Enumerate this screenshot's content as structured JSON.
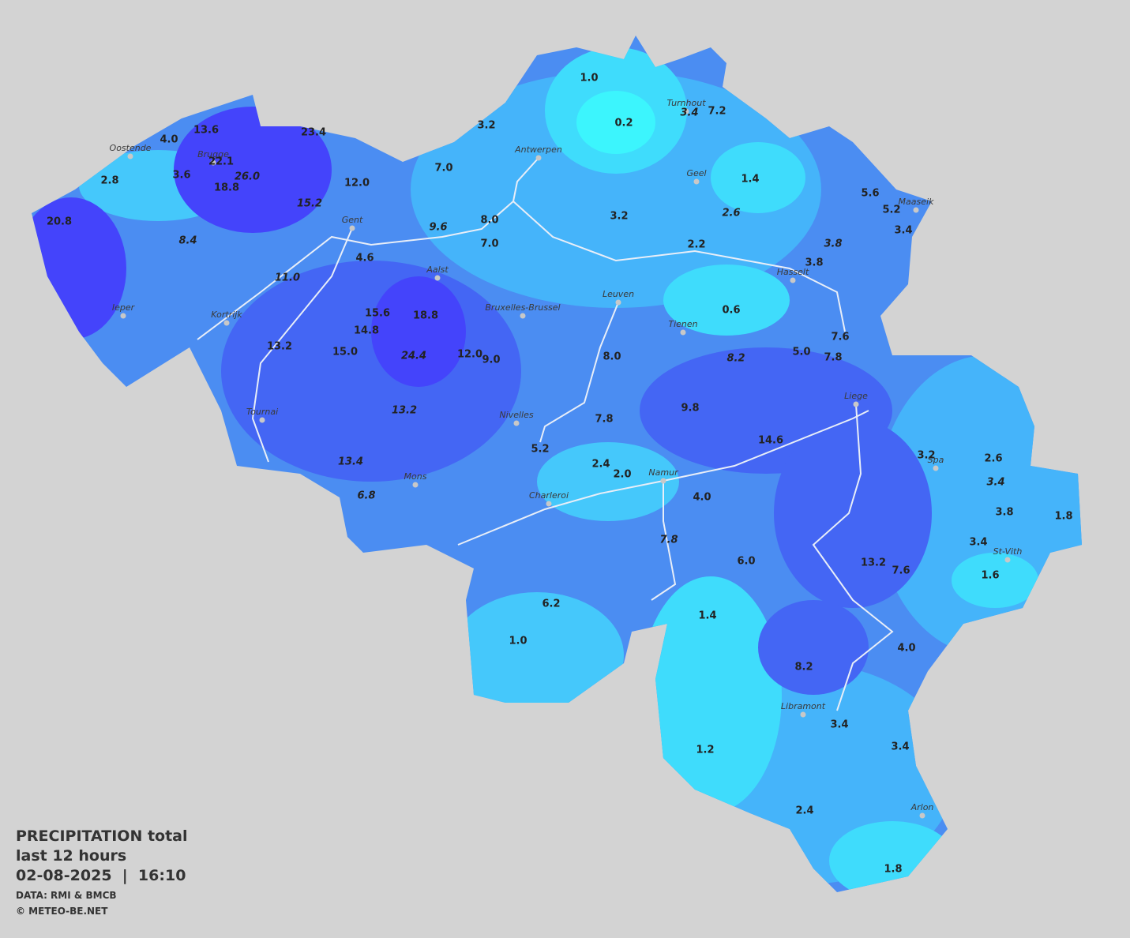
{
  "legend": {
    "title": "PRECIPITATION total",
    "subtitle": "last 12 hours",
    "datetime": "02-08-2025  |  16:10",
    "source": "DATA: RMI & BMCB",
    "copyright": "© METEO-BE.NET"
  },
  "cities": [
    "Oostende",
    "Brugge",
    "Gent",
    "Antwerpen",
    "Turnhout",
    "Geel",
    "Maaseik",
    "Hasselt",
    "Aalst",
    "Ieper",
    "Kortrijk",
    "Bruxelles-Brussel",
    "Leuven",
    "Tienen",
    "Liege",
    "Tournai",
    "Nivelles",
    "Spa",
    "Mons",
    "Namur",
    "Charleroi",
    "St-Vith",
    "Libramont",
    "Arlon"
  ],
  "stations": [
    {
      "value": "13.6",
      "italic": false
    },
    {
      "value": "4.0",
      "italic": false
    },
    {
      "value": "23.4",
      "italic": false
    },
    {
      "value": "22.1",
      "italic": false
    },
    {
      "value": "26.0",
      "italic": true
    },
    {
      "value": "3.6",
      "italic": false
    },
    {
      "value": "2.8",
      "italic": false
    },
    {
      "value": "18.8",
      "italic": false
    },
    {
      "value": "12.0",
      "italic": false
    },
    {
      "value": "15.2",
      "italic": true
    },
    {
      "value": "20.8",
      "italic": false
    },
    {
      "value": "8.4",
      "italic": true
    },
    {
      "value": "7.0",
      "italic": false
    },
    {
      "value": "3.2",
      "italic": false
    },
    {
      "value": "1.0",
      "italic": false
    },
    {
      "value": "0.2",
      "italic": false
    },
    {
      "value": "3.4",
      "italic": true
    },
    {
      "value": "7.2",
      "italic": false
    },
    {
      "value": "1.4",
      "italic": false
    },
    {
      "value": "5.6",
      "italic": false
    },
    {
      "value": "5.2",
      "italic": false
    },
    {
      "value": "3.4",
      "italic": false
    },
    {
      "value": "3.2",
      "italic": false
    },
    {
      "value": "2.6",
      "italic": true
    },
    {
      "value": "3.8",
      "italic": true
    },
    {
      "value": "2.2",
      "italic": false
    },
    {
      "value": "3.8",
      "italic": false
    },
    {
      "value": "0.6",
      "italic": false
    },
    {
      "value": "8.0",
      "italic": false
    },
    {
      "value": "7.0",
      "italic": false
    },
    {
      "value": "9.6",
      "italic": true
    },
    {
      "value": "4.6",
      "italic": false
    },
    {
      "value": "11.0",
      "italic": true
    },
    {
      "value": "18.8",
      "italic": false
    },
    {
      "value": "15.6",
      "italic": false
    },
    {
      "value": "14.8",
      "italic": false
    },
    {
      "value": "15.0",
      "italic": false
    },
    {
      "value": "13.2",
      "italic": false
    },
    {
      "value": "24.4",
      "italic": true
    },
    {
      "value": "12.0",
      "italic": false
    },
    {
      "value": "9.0",
      "italic": false
    },
    {
      "value": "8.0",
      "italic": false
    },
    {
      "value": "8.2",
      "italic": true
    },
    {
      "value": "5.0",
      "italic": false
    },
    {
      "value": "7.6",
      "italic": false
    },
    {
      "value": "7.8",
      "italic": false
    },
    {
      "value": "13.2",
      "italic": true
    },
    {
      "value": "9.8",
      "italic": false
    },
    {
      "value": "7.8",
      "italic": false
    },
    {
      "value": "5.2",
      "italic": false
    },
    {
      "value": "14.6",
      "italic": false
    },
    {
      "value": "13.4",
      "italic": true
    },
    {
      "value": "6.8",
      "italic": true
    },
    {
      "value": "2.4",
      "italic": false
    },
    {
      "value": "2.0",
      "italic": false
    },
    {
      "value": "4.0",
      "italic": false
    },
    {
      "value": "3.2",
      "italic": false
    },
    {
      "value": "2.6",
      "italic": false
    },
    {
      "value": "3.4",
      "italic": true
    },
    {
      "value": "3.8",
      "italic": false
    },
    {
      "value": "1.8",
      "italic": false
    },
    {
      "value": "3.4",
      "italic": false
    },
    {
      "value": "1.6",
      "italic": false
    },
    {
      "value": "7.8",
      "italic": true
    },
    {
      "value": "6.0",
      "italic": false
    },
    {
      "value": "13.2",
      "italic": false
    },
    {
      "value": "7.6",
      "italic": false
    },
    {
      "value": "6.2",
      "italic": false
    },
    {
      "value": "1.4",
      "italic": false
    },
    {
      "value": "1.0",
      "italic": false
    },
    {
      "value": "4.0",
      "italic": false
    },
    {
      "value": "8.2",
      "italic": false
    },
    {
      "value": "3.4",
      "italic": false
    },
    {
      "value": "1.2",
      "italic": false
    },
    {
      "value": "3.4",
      "italic": false
    },
    {
      "value": "2.4",
      "italic": false
    },
    {
      "value": "1.8",
      "italic": false
    }
  ]
}
